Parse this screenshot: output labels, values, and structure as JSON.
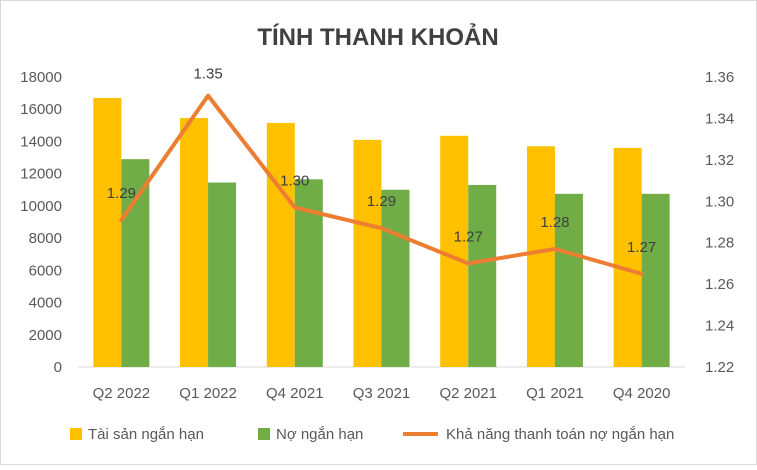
{
  "chart_data": {
    "type": "bar",
    "title": "TÍNH THANH KHOẢN",
    "categories": [
      "Q2 2022",
      "Q1 2022",
      "Q4 2021",
      "Q3 2021",
      "Q2 2021",
      "Q1 2021",
      "Q4 2020"
    ],
    "series": [
      {
        "name": "Tài sản ngắn hạn",
        "type": "bar",
        "axis": "left",
        "color": "#FFC000",
        "values": [
          16700,
          15450,
          15150,
          14100,
          14350,
          13700,
          13600
        ]
      },
      {
        "name": "Nợ ngắn hạn",
        "type": "bar",
        "axis": "left",
        "color": "#70AD47",
        "values": [
          12900,
          11450,
          11650,
          11000,
          11300,
          10750,
          10750
        ]
      },
      {
        "name": "Khả năng thanh toán nợ ngắn hạn",
        "type": "line",
        "axis": "right",
        "color": "#ED7D31",
        "values": [
          1.291,
          1.351,
          1.297,
          1.287,
          1.27,
          1.277,
          1.265
        ],
        "labels": [
          "1.29",
          "1.35",
          "1.30",
          "1.29",
          "1.27",
          "1.28",
          "1.27"
        ]
      }
    ],
    "y_left": {
      "min": 0,
      "max": 18000,
      "ticks": [
        "0",
        "2000",
        "4000",
        "6000",
        "8000",
        "10000",
        "12000",
        "14000",
        "16000",
        "18000"
      ]
    },
    "y_right": {
      "min": 1.22,
      "max": 1.36,
      "ticks": [
        "1.22",
        "1.24",
        "1.26",
        "1.28",
        "1.30",
        "1.32",
        "1.34",
        "1.36"
      ]
    },
    "grid": false,
    "legend": "bottom"
  }
}
